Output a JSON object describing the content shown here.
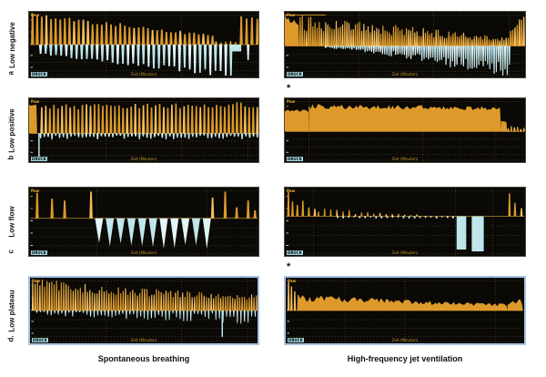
{
  "figure": {
    "rows": [
      {
        "letter": "a",
        "label": "Low negative"
      },
      {
        "letter": "b",
        "label": "Low positive"
      },
      {
        "letter": "c",
        "label": "Low flow"
      },
      {
        "letter": "d.",
        "label": "Low plateau"
      }
    ],
    "captions": {
      "left": "Spontaneous breathing",
      "right": "High-frequency jet ventilation"
    },
    "asterisk": "*",
    "panel_chrome": {
      "y_label": "Paw",
      "channel_label": "DRUCK",
      "x_label": "Zeit (Minuten)"
    }
  },
  "chart_data": {
    "type": "area",
    "description": "Eight dark ventilator trend-screen waveform panels: orange pressure spikes above baseline, cyan spikes below baseline. Rows = alarm condition (Low negative, Low positive, Low flow, Low plateau); columns = Spontaneous breathing vs High-frequency jet ventilation.",
    "columns": [
      "Spontaneous breathing",
      "High-frequency jet ventilation"
    ],
    "row_conditions": [
      "Low negative",
      "Low positive",
      "Low flow",
      "Low plateau"
    ],
    "colors": {
      "panel_bg": "#0a0906",
      "orange_main": "#dd9a2b",
      "orange_light": "#f5be5c",
      "cyan_main": "#bfe6ec",
      "cyan_light": "#e2f5f8",
      "baseline": "#c08a25",
      "grid": "#4a4026",
      "border_d": "#a6c2e4"
    },
    "panels": [
      {
        "id": "spont-low-negative",
        "baseline": 0.5,
        "grid": {
          "v": [
            0.335,
            0.665
          ],
          "h": [
            0.05,
            0.64,
            0.77,
            0.9,
            0.97
          ]
        },
        "elements": [
          {
            "t": "train",
            "c": "orange",
            "dir": "up",
            "x0": 0.015,
            "x1": 0.8,
            "n": 40,
            "h0": 0.95,
            "h1": 0.28,
            "j": 0.12,
            "w": 3.5
          },
          {
            "t": "train",
            "c": "orange",
            "dir": "up",
            "x0": 0.815,
            "x1": 0.9,
            "n": 5,
            "h0": 0.12,
            "h1": 0.08,
            "j": 0.3,
            "w": 2.5
          },
          {
            "t": "train",
            "c": "orange",
            "dir": "up",
            "x0": 0.925,
            "x1": 0.995,
            "n": 4,
            "h0": 0.85,
            "h1": 0.9,
            "j": 0.08,
            "w": 3.5
          },
          {
            "t": "train",
            "c": "cyan",
            "dir": "down",
            "x0": 0.05,
            "x1": 0.88,
            "n": 38,
            "h0": 0.3,
            "h1": 0.98,
            "j": 0.1,
            "w": 3.5
          },
          {
            "t": "rect",
            "c": "cyan",
            "x0": 0.885,
            "x1": 0.925,
            "d": 0.22
          },
          {
            "t": "spikes",
            "c": "cyan",
            "dir": "down",
            "x": [
              0.955
            ],
            "h": [
              0.5
            ],
            "w": 3
          }
        ]
      },
      {
        "id": "hfjv-low-negative",
        "baseline": 0.52,
        "grid": {
          "v": [
            0.31,
            0.62,
            0.935
          ],
          "h": [
            0.05,
            0.65,
            0.78,
            0.91,
            0.97
          ]
        },
        "elements": [
          {
            "t": "band",
            "c": "orange",
            "x0": 0.0,
            "x1": 0.055,
            "h0": 0.95,
            "h1": 0.62,
            "j": 0.15
          },
          {
            "t": "train",
            "c": "orange",
            "dir": "up",
            "x0": 0.055,
            "x1": 0.93,
            "n": 100,
            "h0": 0.72,
            "h1": 0.22,
            "j": 0.35,
            "w": 2.2
          },
          {
            "t": "train",
            "c": "orange",
            "dir": "up",
            "x0": 0.94,
            "x1": 0.995,
            "n": 7,
            "h0": 0.5,
            "h1": 1.0,
            "j": 0.15,
            "w": 2.5
          },
          {
            "t": "train",
            "c": "cyan",
            "dir": "down",
            "x0": 0.17,
            "x1": 0.935,
            "n": 85,
            "h0": 0.06,
            "h1": 0.85,
            "j": 0.35,
            "w": 2.2,
            "pw": 1.3
          },
          {
            "t": "hline",
            "c": "orange",
            "x0": 0.0,
            "x1": 0.17,
            "y": 0.96
          }
        ]
      },
      {
        "id": "spont-low-positive",
        "baseline": 0.55,
        "grid": {
          "v": [
            0.335,
            0.665,
            0.955
          ],
          "h": [
            0.05,
            0.67,
            0.78,
            0.89,
            0.97
          ]
        },
        "elements": [
          {
            "t": "band",
            "c": "orange",
            "x0": 0.0,
            "x1": 0.035,
            "h0": 0.88,
            "h1": 0.88,
            "j": 0.05
          },
          {
            "t": "vline",
            "c": "cyan",
            "x": 0.043,
            "d": 0.97
          },
          {
            "t": "train",
            "c": "orange",
            "dir": "up",
            "x0": 0.055,
            "x1": 0.995,
            "n": 54,
            "h0": 0.8,
            "h1": 0.86,
            "j": 0.1,
            "w": 3.2
          },
          {
            "t": "train",
            "c": "cyan",
            "dir": "down",
            "x0": 0.05,
            "x1": 0.995,
            "n": 58,
            "h0": 0.15,
            "h1": 0.15,
            "j": 0.5,
            "w": 2.5
          }
        ]
      },
      {
        "id": "hfjv-low-positive",
        "baseline": 0.52,
        "grid": {
          "v": [
            0.1,
            0.575,
            0.875
          ],
          "h": [
            0.05,
            0.64,
            0.76,
            0.88,
            0.97
          ]
        },
        "elements": [
          {
            "t": "band",
            "c": "orange",
            "x0": 0.0,
            "x1": 0.1,
            "h0": 0.66,
            "h1": 0.66,
            "j": 0.06
          },
          {
            "t": "band",
            "c": "orange",
            "x0": 0.1,
            "x1": 0.9,
            "h0": 0.8,
            "h1": 0.74,
            "j": 0.1
          },
          {
            "t": "band",
            "c": "orange",
            "x0": 0.9,
            "x1": 0.925,
            "h0": 0.38,
            "h1": 0.3,
            "j": 0.15
          },
          {
            "t": "train",
            "c": "orange",
            "dir": "up",
            "x0": 0.93,
            "x1": 0.995,
            "n": 6,
            "h0": 0.14,
            "h1": 0.1,
            "j": 0.3,
            "w": 2.5
          }
        ]
      },
      {
        "id": "spont-low-flow",
        "baseline": 0.45,
        "grid": {
          "v": [
            0.295,
            0.775
          ],
          "h": [
            0.05,
            0.59,
            0.72,
            0.85,
            0.97
          ]
        },
        "elements": [
          {
            "t": "spikes",
            "c": "orange",
            "dir": "up",
            "x": [
              0.035,
              0.1,
              0.155,
              0.27
            ],
            "h": [
              0.88,
              0.68,
              0.62,
              0.92
            ],
            "w": 3.5
          },
          {
            "t": "spikes",
            "c": "orange",
            "dir": "up",
            "x": [
              0.8,
              0.855,
              0.905,
              0.955,
              0.985
            ],
            "h": [
              0.72,
              0.92,
              0.38,
              0.62,
              0.28
            ],
            "w": 3.5
          },
          {
            "t": "train",
            "c": "cyan",
            "dir": "down",
            "x0": 0.305,
            "x1": 0.775,
            "n": 11,
            "h0": 0.75,
            "h1": 0.78,
            "j": 0.12,
            "w": 9,
            "tip": true
          }
        ]
      },
      {
        "id": "hfjv-low-flow",
        "baseline": 0.42,
        "grid": {
          "v": [
            0.12,
            0.71,
            0.865
          ],
          "h": [
            0.05,
            0.56,
            0.7,
            0.84,
            0.97
          ]
        },
        "elements": [
          {
            "t": "spikes",
            "c": "orange",
            "dir": "up",
            "x": [
              0.015,
              0.032,
              0.052,
              0.075,
              0.1,
              0.125
            ],
            "h": [
              0.92,
              0.55,
              0.42,
              0.58,
              0.33,
              0.28
            ],
            "w": 2.8
          },
          {
            "t": "train",
            "c": "orange",
            "dir": "up",
            "x0": 0.14,
            "x1": 0.55,
            "n": 17,
            "h0": 0.24,
            "h1": 0.05,
            "j": 0.5,
            "w": 2.2
          },
          {
            "t": "train",
            "c": "cyan",
            "dir": "down",
            "x0": 0.22,
            "x1": 0.7,
            "n": 22,
            "h0": 0.045,
            "h1": 0.045,
            "j": 0.4,
            "w": 2.5
          },
          {
            "t": "rect",
            "c": "cyan",
            "x0": 0.715,
            "x1": 0.755,
            "d": 0.88
          },
          {
            "t": "rect",
            "c": "cyan",
            "x0": 0.778,
            "x1": 0.828,
            "d": 0.93
          },
          {
            "t": "spikes",
            "c": "orange",
            "dir": "up",
            "x": [
              0.935,
              0.958,
              0.985
            ],
            "h": [
              0.85,
              0.5,
              0.3
            ],
            "w": 2.8
          }
        ]
      },
      {
        "id": "spont-low-plateau",
        "baseline": 0.5,
        "grid": {
          "v": [
            0.335,
            0.665,
            0.955
          ],
          "h": [
            0.05,
            0.64,
            0.77,
            0.9,
            0.97
          ]
        },
        "elements": [
          {
            "t": "train",
            "c": "orange",
            "dir": "up",
            "x0": 0.012,
            "x1": 0.995,
            "n": 95,
            "h0": 0.97,
            "h1": 0.42,
            "j": 0.22,
            "w": 2.2,
            "pw": 0.55
          },
          {
            "t": "train",
            "c": "cyan",
            "dir": "down",
            "x0": 0.03,
            "x1": 0.99,
            "n": 62,
            "h0": 0.1,
            "h1": 0.28,
            "j": 0.6,
            "w": 1.8
          },
          {
            "t": "vline",
            "c": "cyan",
            "x": 0.845,
            "d": 0.85
          }
        ]
      },
      {
        "id": "hfjv-low-plateau",
        "baseline": 0.5,
        "grid": {
          "v": [
            0.25,
            0.5,
            0.88
          ],
          "h": [
            0.05,
            0.64,
            0.77,
            0.9,
            0.97
          ]
        },
        "elements": [
          {
            "t": "spikes",
            "c": "orange",
            "dir": "up",
            "x": [
              0.012,
              0.024,
              0.038,
              0.052,
              0.066
            ],
            "h": [
              0.95,
              0.78,
              0.62,
              0.5,
              0.44
            ],
            "w": 2.5
          },
          {
            "t": "band",
            "c": "orange",
            "x0": 0.055,
            "x1": 0.93,
            "h0": 0.4,
            "h1": 0.17,
            "j": 0.28
          },
          {
            "t": "band",
            "c": "orange",
            "x0": 0.93,
            "x1": 0.995,
            "h0": 0.2,
            "h1": 0.3,
            "j": 0.3
          }
        ]
      }
    ]
  }
}
